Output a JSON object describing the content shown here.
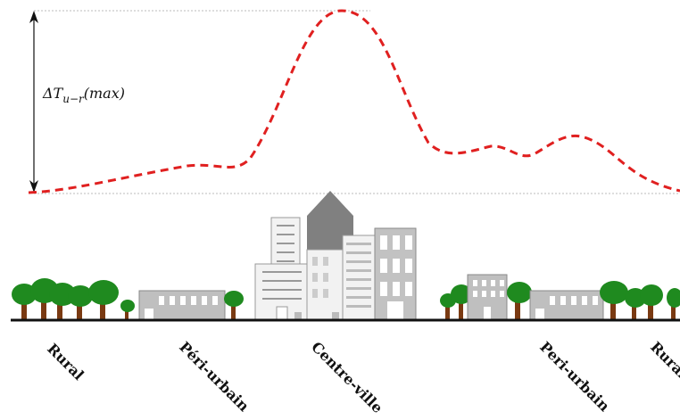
{
  "annotation": {
    "delta_symbol": "ΔT",
    "delta_subscript": "u−r",
    "delta_suffix": "(max)"
  },
  "zones": [
    {
      "label": "Rural"
    },
    {
      "label": "Péri-urbain"
    },
    {
      "label": "Centre-ville"
    },
    {
      "label": "Peri-urbain"
    },
    {
      "label": "Rural"
    }
  ],
  "colors": {
    "temperature_curve": "#e02020",
    "ground": "#111111",
    "building": "#bfbfbf",
    "building_dark": "#808080",
    "building_light": "#f2f2f2",
    "tree_foliage": "#1f8a1f",
    "tree_trunk": "#7a3a12",
    "reference_line": "#bbbbbb"
  }
}
